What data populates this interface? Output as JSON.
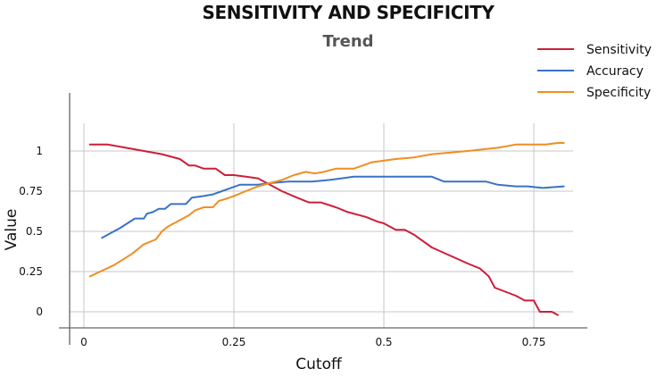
{
  "chart_data": {
    "type": "line",
    "title": "SENSITIVITY AND SPECIFICITY",
    "subtitle": "Trend",
    "xlabel": "Cutoff",
    "ylabel": "Value",
    "xlim": [
      -0.05,
      0.82
    ],
    "ylim": [
      -0.08,
      1.18
    ],
    "x_ticks": [
      0,
      0.25,
      0.5,
      0.75
    ],
    "x_tick_labels": [
      "0",
      "0.25",
      "0.5",
      "0.75"
    ],
    "y_ticks": [
      0,
      0.25,
      0.5,
      0.75,
      1
    ],
    "y_tick_labels": [
      "0",
      "0.25",
      "0.5",
      "0.75",
      "1"
    ],
    "grid": true,
    "legend_position": "top-right",
    "series": [
      {
        "name": "Sensitivity",
        "color": "#cc1f3a",
        "points": [
          [
            0.01,
            1.04
          ],
          [
            0.04,
            1.04
          ],
          [
            0.07,
            1.02
          ],
          [
            0.1,
            1.0
          ],
          [
            0.13,
            0.98
          ],
          [
            0.16,
            0.95
          ],
          [
            0.175,
            0.91
          ],
          [
            0.185,
            0.91
          ],
          [
            0.2,
            0.89
          ],
          [
            0.22,
            0.89
          ],
          [
            0.235,
            0.85
          ],
          [
            0.25,
            0.85
          ],
          [
            0.27,
            0.84
          ],
          [
            0.29,
            0.83
          ],
          [
            0.31,
            0.79
          ],
          [
            0.33,
            0.75
          ],
          [
            0.355,
            0.71
          ],
          [
            0.375,
            0.68
          ],
          [
            0.395,
            0.68
          ],
          [
            0.42,
            0.65
          ],
          [
            0.44,
            0.62
          ],
          [
            0.47,
            0.59
          ],
          [
            0.49,
            0.56
          ],
          [
            0.5,
            0.55
          ],
          [
            0.52,
            0.51
          ],
          [
            0.535,
            0.51
          ],
          [
            0.55,
            0.48
          ],
          [
            0.58,
            0.4
          ],
          [
            0.61,
            0.35
          ],
          [
            0.64,
            0.3
          ],
          [
            0.66,
            0.27
          ],
          [
            0.675,
            0.22
          ],
          [
            0.685,
            0.15
          ],
          [
            0.72,
            0.1
          ],
          [
            0.735,
            0.07
          ],
          [
            0.75,
            0.07
          ],
          [
            0.76,
            0.0
          ],
          [
            0.78,
            0.0
          ],
          [
            0.79,
            -0.02
          ]
        ]
      },
      {
        "name": "Accuracy",
        "color": "#3a72c6",
        "points": [
          [
            0.03,
            0.46
          ],
          [
            0.06,
            0.52
          ],
          [
            0.085,
            0.58
          ],
          [
            0.1,
            0.58
          ],
          [
            0.105,
            0.61
          ],
          [
            0.115,
            0.62
          ],
          [
            0.125,
            0.64
          ],
          [
            0.135,
            0.64
          ],
          [
            0.145,
            0.67
          ],
          [
            0.17,
            0.67
          ],
          [
            0.18,
            0.71
          ],
          [
            0.2,
            0.72
          ],
          [
            0.215,
            0.73
          ],
          [
            0.23,
            0.75
          ],
          [
            0.26,
            0.79
          ],
          [
            0.29,
            0.79
          ],
          [
            0.31,
            0.8
          ],
          [
            0.34,
            0.81
          ],
          [
            0.38,
            0.81
          ],
          [
            0.41,
            0.82
          ],
          [
            0.45,
            0.84
          ],
          [
            0.5,
            0.84
          ],
          [
            0.58,
            0.84
          ],
          [
            0.6,
            0.81
          ],
          [
            0.67,
            0.81
          ],
          [
            0.69,
            0.79
          ],
          [
            0.72,
            0.78
          ],
          [
            0.74,
            0.78
          ],
          [
            0.765,
            0.77
          ],
          [
            0.8,
            0.78
          ]
        ]
      },
      {
        "name": "Specificity",
        "color": "#ef8e22",
        "points": [
          [
            0.01,
            0.22
          ],
          [
            0.05,
            0.29
          ],
          [
            0.08,
            0.36
          ],
          [
            0.1,
            0.42
          ],
          [
            0.12,
            0.45
          ],
          [
            0.13,
            0.5
          ],
          [
            0.14,
            0.53
          ],
          [
            0.15,
            0.55
          ],
          [
            0.165,
            0.58
          ],
          [
            0.175,
            0.6
          ],
          [
            0.185,
            0.63
          ],
          [
            0.2,
            0.65
          ],
          [
            0.215,
            0.65
          ],
          [
            0.225,
            0.69
          ],
          [
            0.235,
            0.7
          ],
          [
            0.25,
            0.72
          ],
          [
            0.27,
            0.75
          ],
          [
            0.29,
            0.78
          ],
          [
            0.31,
            0.8
          ],
          [
            0.33,
            0.82
          ],
          [
            0.35,
            0.85
          ],
          [
            0.37,
            0.87
          ],
          [
            0.385,
            0.86
          ],
          [
            0.4,
            0.87
          ],
          [
            0.42,
            0.89
          ],
          [
            0.45,
            0.89
          ],
          [
            0.48,
            0.93
          ],
          [
            0.52,
            0.95
          ],
          [
            0.55,
            0.96
          ],
          [
            0.58,
            0.98
          ],
          [
            0.64,
            1.0
          ],
          [
            0.69,
            1.02
          ],
          [
            0.72,
            1.04
          ],
          [
            0.77,
            1.04
          ],
          [
            0.79,
            1.05
          ],
          [
            0.8,
            1.05
          ]
        ]
      }
    ]
  }
}
